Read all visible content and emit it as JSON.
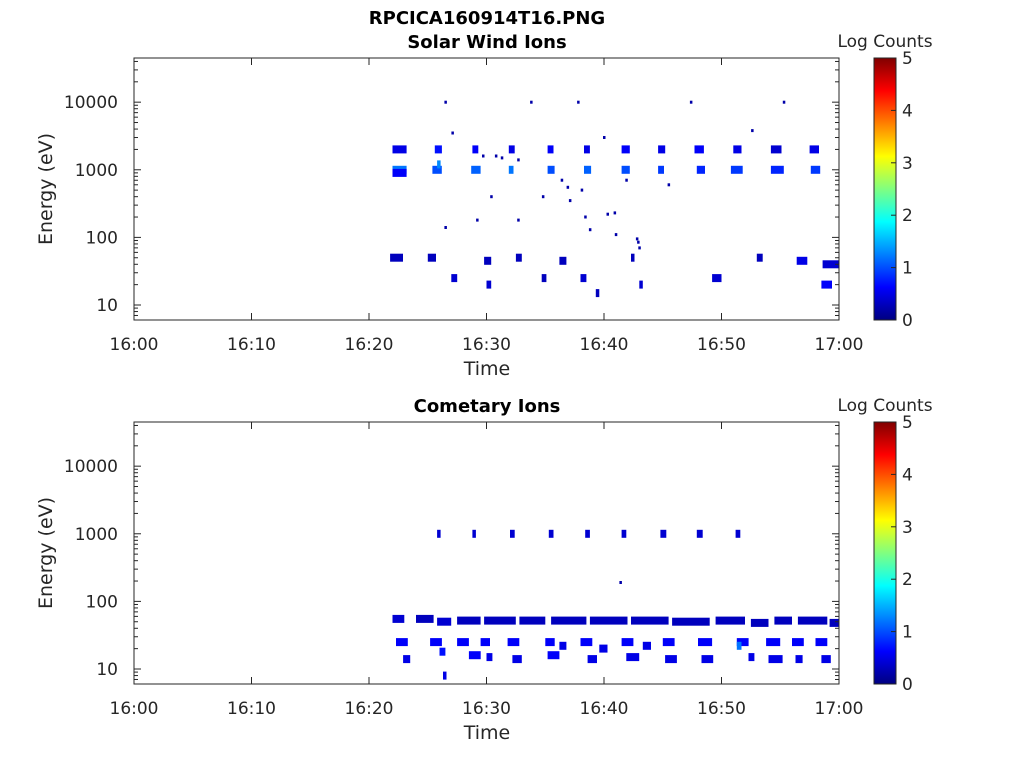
{
  "figure": {
    "title": "RPCICA160914T16.PNG"
  },
  "colorbar_stops": [
    "#000080",
    "#0000ff",
    "#0080ff",
    "#00ffff",
    "#80ff80",
    "#ffff00",
    "#ff8000",
    "#ff0000",
    "#800000"
  ],
  "chart_data": [
    {
      "type": "heatmap",
      "title": "Solar Wind Ions",
      "xlabel": "Time",
      "ylabel": "Energy (eV)",
      "x_scale": "time",
      "xlim": [
        "16:00",
        "17:00"
      ],
      "x_ticks": [
        "16:00",
        "16:10",
        "16:20",
        "16:30",
        "16:40",
        "16:50",
        "17:00"
      ],
      "y_scale": "log",
      "ylim": [
        6,
        45000
      ],
      "y_ticks": [
        10,
        100,
        1000,
        10000
      ],
      "y_tick_labels": [
        "10",
        "100",
        "1000",
        "10000"
      ],
      "colorbar": {
        "label": "Log Counts",
        "range": [
          0,
          5
        ],
        "ticks": [
          "0",
          "1",
          "2",
          "3",
          "4",
          "5"
        ]
      },
      "cells": [
        [
          "16:22.0",
          "16:23.2",
          2000,
          0.5
        ],
        [
          "16:22.0",
          "16:23.2",
          1000,
          1.2
        ],
        [
          "16:22.0",
          "16:23.2",
          900,
          0.6
        ],
        [
          "16:25.6",
          "16:26.2",
          2000,
          0.7
        ],
        [
          "16:25.4",
          "16:26.2",
          1000,
          1.0
        ],
        [
          "16:25.8",
          "16:26.1",
          1200,
          1.3
        ],
        [
          "16:28.8",
          "16:29.3",
          2000,
          0.6
        ],
        [
          "16:28.7",
          "16:29.5",
          1000,
          1.1
        ],
        [
          "16:31.9",
          "16:32.4",
          2000,
          0.5
        ],
        [
          "16:31.9",
          "16:32.3",
          1000,
          1.2
        ],
        [
          "16:35.2",
          "16:35.7",
          2000,
          0.6
        ],
        [
          "16:35.2",
          "16:35.8",
          1000,
          1.0
        ],
        [
          "16:38.3",
          "16:38.8",
          2000,
          0.5
        ],
        [
          "16:38.3",
          "16:38.9",
          1000,
          1.1
        ],
        [
          "16:41.5",
          "16:42.2",
          2000,
          0.6
        ],
        [
          "16:41.5",
          "16:42.2",
          1000,
          1.0
        ],
        [
          "16:44.6",
          "16:45.2",
          2000,
          0.5
        ],
        [
          "16:44.6",
          "16:45.1",
          1000,
          0.9
        ],
        [
          "16:47.7",
          "16:48.5",
          2000,
          0.6
        ],
        [
          "16:47.9",
          "16:48.6",
          1000,
          0.8
        ],
        [
          "16:51.0",
          "16:51.7",
          2000,
          0.5
        ],
        [
          "16:50.8",
          "16:51.8",
          1000,
          0.9
        ],
        [
          "16:54.2",
          "16:55.1",
          2000,
          0.4
        ],
        [
          "16:54.2",
          "16:55.3",
          1000,
          0.8
        ],
        [
          "16:57.5",
          "16:58.3",
          2000,
          0.5
        ],
        [
          "16:57.6",
          "16:58.4",
          1000,
          0.9
        ],
        [
          "16:21.8",
          "16:22.9",
          50,
          0.3
        ],
        [
          "16:25.0",
          "16:25.7",
          50,
          0.3
        ],
        [
          "16:27.0",
          "16:27.5",
          25,
          0.4
        ],
        [
          "16:29.8",
          "16:30.4",
          45,
          0.3
        ],
        [
          "16:30.0",
          "16:30.4",
          20,
          0.4
        ],
        [
          "16:32.5",
          "16:33.0",
          50,
          0.3
        ],
        [
          "16:34.7",
          "16:35.1",
          25,
          0.3
        ],
        [
          "16:36.2",
          "16:36.8",
          45,
          0.3
        ],
        [
          "16:38.0",
          "16:38.5",
          25,
          0.4
        ],
        [
          "16:39.3",
          "16:39.6",
          15,
          0.3
        ],
        [
          "16:42.3",
          "16:42.6",
          50,
          0.3
        ],
        [
          "16:43.0",
          "16:43.3",
          20,
          0.4
        ],
        [
          "16:49.2",
          "16:50.0",
          25,
          0.4
        ],
        [
          "16:53.0",
          "16:53.5",
          50,
          0.3
        ],
        [
          "16:56.4",
          "16:57.3",
          45,
          0.5
        ],
        [
          "16:58.5",
          "16:59.4",
          20,
          0.6
        ],
        [
          "16:58.6",
          "17:00.0",
          40,
          0.4
        ]
      ],
      "scatter": [
        [
          "16:26.5",
          10000
        ],
        [
          "16:33.8",
          10000
        ],
        [
          "16:37.8",
          10000
        ],
        [
          "16:47.4",
          10000
        ],
        [
          "16:55.3",
          10000
        ],
        [
          "16:27.1",
          3500
        ],
        [
          "16:40.0",
          3000
        ],
        [
          "16:52.6",
          3800
        ],
        [
          "16:29.7",
          1600
        ],
        [
          "16:30.8",
          1600
        ],
        [
          "16:31.3",
          1500
        ],
        [
          "16:32.7",
          1400
        ],
        [
          "16:36.4",
          700
        ],
        [
          "16:36.9",
          550
        ],
        [
          "16:38.1",
          500
        ],
        [
          "16:41.9",
          700
        ],
        [
          "16:45.5",
          600
        ],
        [
          "16:30.4",
          400
        ],
        [
          "16:34.8",
          400
        ],
        [
          "16:37.1",
          350
        ],
        [
          "16:29.2",
          180
        ],
        [
          "16:32.7",
          180
        ],
        [
          "16:38.4",
          200
        ],
        [
          "16:40.3",
          220
        ],
        [
          "16:40.9",
          230
        ],
        [
          "16:26.5",
          140
        ],
        [
          "16:38.8",
          130
        ],
        [
          "16:41.0",
          110
        ],
        [
          "16:42.8",
          95
        ],
        [
          "16:42.9",
          85
        ],
        [
          "16:43.0",
          70
        ]
      ]
    },
    {
      "type": "heatmap",
      "title": "Cometary Ions",
      "xlabel": "Time",
      "ylabel": "Energy (eV)",
      "x_scale": "time",
      "xlim": [
        "16:00",
        "17:00"
      ],
      "x_ticks": [
        "16:00",
        "16:10",
        "16:20",
        "16:30",
        "16:40",
        "16:50",
        "17:00"
      ],
      "y_scale": "log",
      "ylim": [
        6,
        45000
      ],
      "y_ticks": [
        10,
        100,
        1000,
        10000
      ],
      "y_tick_labels": [
        "10",
        "100",
        "1000",
        "10000"
      ],
      "colorbar": {
        "label": "Log Counts",
        "range": [
          0,
          5
        ],
        "ticks": [
          "0",
          "1",
          "2",
          "3",
          "4",
          "5"
        ]
      },
      "cells": [
        [
          "16:25.8",
          "16:26.1",
          1000,
          0.4
        ],
        [
          "16:28.8",
          "16:29.1",
          1000,
          0.4
        ],
        [
          "16:32.0",
          "16:32.4",
          1000,
          0.4
        ],
        [
          "16:35.3",
          "16:35.7",
          1000,
          0.4
        ],
        [
          "16:38.4",
          "16:38.8",
          1000,
          0.4
        ],
        [
          "16:41.5",
          "16:41.9",
          1000,
          0.4
        ],
        [
          "16:44.8",
          "16:45.3",
          1000,
          0.4
        ],
        [
          "16:47.9",
          "16:48.4",
          1000,
          0.4
        ],
        [
          "16:51.2",
          "16:51.6",
          1000,
          0.4
        ],
        [
          "16:22.0",
          "16:23.0",
          55,
          0.4
        ],
        [
          "16:24.0",
          "16:25.5",
          55,
          0.3
        ],
        [
          "16:25.8",
          "16:27.0",
          50,
          0.4
        ],
        [
          "16:27.5",
          "16:29.5",
          52,
          0.3
        ],
        [
          "16:29.8",
          "16:32.5",
          52,
          0.3
        ],
        [
          "16:32.8",
          "16:35.0",
          52,
          0.3
        ],
        [
          "16:35.5",
          "16:38.5",
          52,
          0.3
        ],
        [
          "16:38.8",
          "16:42.0",
          52,
          0.3
        ],
        [
          "16:42.3",
          "16:45.5",
          52,
          0.3
        ],
        [
          "16:45.8",
          "16:49.0",
          50,
          0.3
        ],
        [
          "16:49.5",
          "16:52.0",
          52,
          0.3
        ],
        [
          "16:52.5",
          "16:54.0",
          48,
          0.3
        ],
        [
          "16:54.5",
          "16:56.0",
          52,
          0.3
        ],
        [
          "16:56.5",
          "16:59.0",
          52,
          0.3
        ],
        [
          "16:59.2",
          "17:00.0",
          48,
          0.3
        ],
        [
          "16:22.3",
          "16:23.3",
          25,
          0.6
        ],
        [
          "16:22.9",
          "16:23.5",
          14,
          0.5
        ],
        [
          "16:25.2",
          "16:26.2",
          25,
          0.6
        ],
        [
          "16:26.0",
          "16:26.5",
          18,
          0.7
        ],
        [
          "16:26.3",
          "16:26.6",
          8,
          0.5
        ],
        [
          "16:27.5",
          "16:28.5",
          25,
          0.6
        ],
        [
          "16:28.5",
          "16:29.5",
          16,
          0.6
        ],
        [
          "16:30.0",
          "16:30.5",
          15,
          0.5
        ],
        [
          "16:29.5",
          "16:30.3",
          25,
          0.6
        ],
        [
          "16:31.8",
          "16:32.8",
          25,
          0.6
        ],
        [
          "16:32.2",
          "16:33.0",
          14,
          0.5
        ],
        [
          "16:35.0",
          "16:35.8",
          25,
          0.6
        ],
        [
          "16:35.2",
          "16:36.2",
          16,
          0.6
        ],
        [
          "16:36.2",
          "16:36.8",
          22,
          0.5
        ],
        [
          "16:38.0",
          "16:39.0",
          25,
          0.6
        ],
        [
          "16:38.6",
          "16:39.4",
          14,
          0.5
        ],
        [
          "16:39.6",
          "16:40.3",
          20,
          0.5
        ],
        [
          "16:41.5",
          "16:42.5",
          25,
          0.6
        ],
        [
          "16:41.9",
          "16:43.0",
          15,
          0.5
        ],
        [
          "16:43.3",
          "16:44.0",
          22,
          0.5
        ],
        [
          "16:45.0",
          "16:46.0",
          25,
          0.6
        ],
        [
          "16:45.2",
          "16:46.2",
          14,
          0.5
        ],
        [
          "16:48.0",
          "16:49.2",
          25,
          0.6
        ],
        [
          "16:48.3",
          "16:49.3",
          14,
          0.5
        ],
        [
          "16:51.3",
          "16:52.3",
          25,
          0.6
        ],
        [
          "16:51.3",
          "16:51.7",
          22,
          1.2
        ],
        [
          "16:52.3",
          "16:52.8",
          15,
          0.5
        ],
        [
          "16:53.8",
          "16:55.0",
          25,
          0.6
        ],
        [
          "16:54.0",
          "16:55.2",
          14,
          0.5
        ],
        [
          "16:56.0",
          "16:57.0",
          25,
          0.6
        ],
        [
          "16:56.3",
          "16:56.9",
          14,
          0.5
        ],
        [
          "16:58.0",
          "16:59.0",
          25,
          0.6
        ],
        [
          "16:58.5",
          "16:59.3",
          14,
          0.5
        ]
      ],
      "scatter": [
        [
          "16:41.4",
          190
        ]
      ]
    }
  ]
}
